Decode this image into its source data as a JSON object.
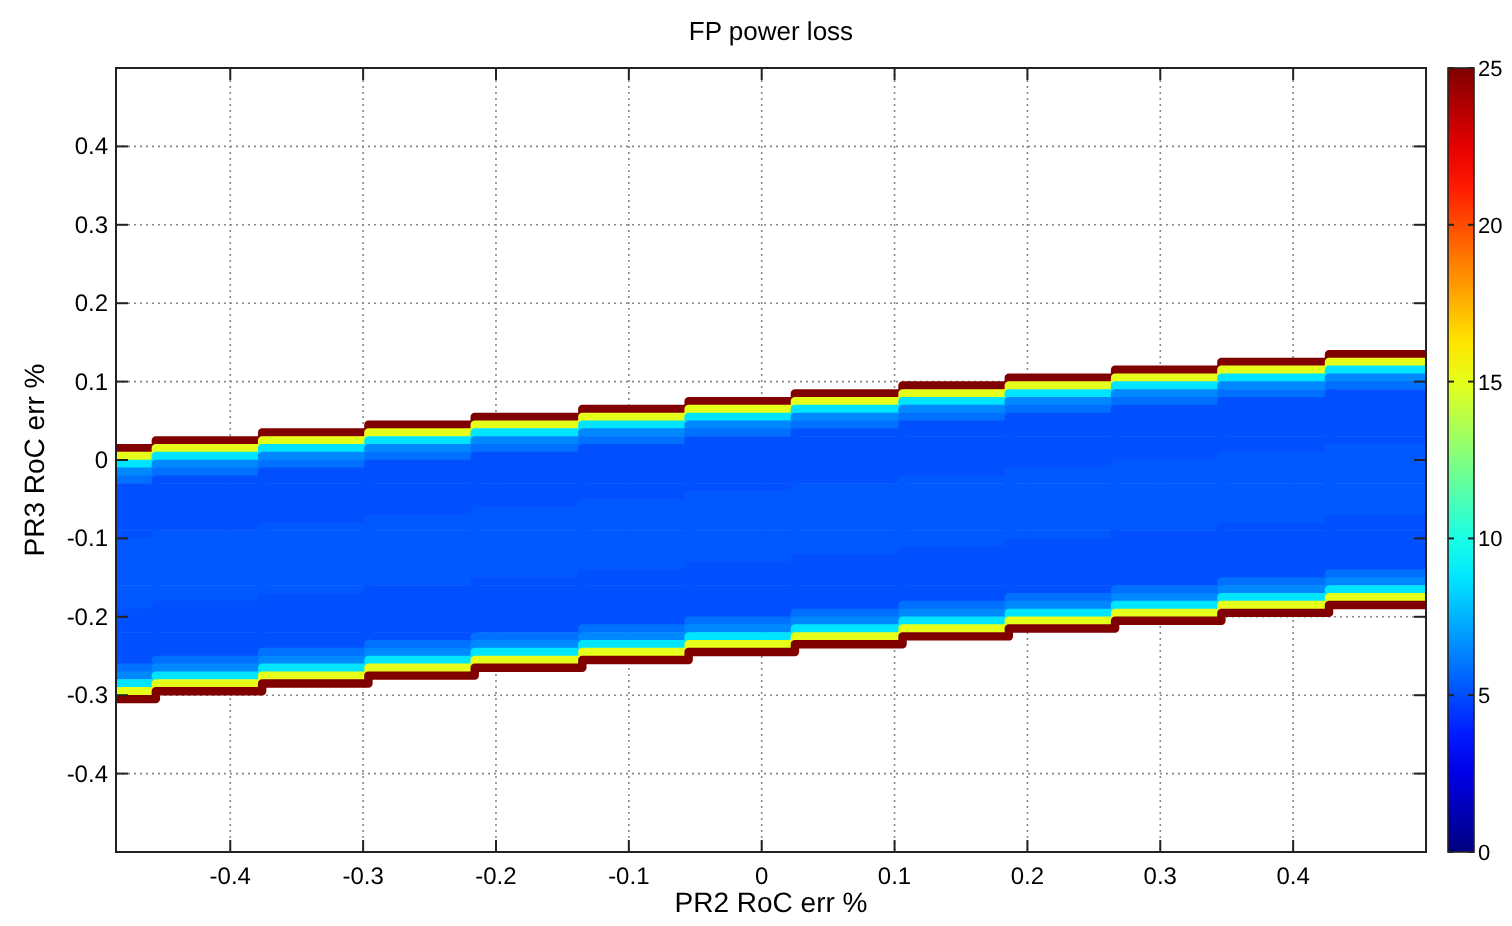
{
  "chart_data": {
    "type": "step",
    "title": "FP power loss",
    "xlabel": "PR2 RoC err %",
    "ylabel": "PR3 RoC err %",
    "xlim": [
      -0.486,
      0.5
    ],
    "xticks": [
      -0.4,
      -0.3,
      -0.2,
      -0.1,
      0,
      0.1,
      0.2,
      0.3,
      0.4
    ],
    "ylim": [
      -0.5,
      0.5
    ],
    "yticks": [
      -0.4,
      -0.3,
      -0.2,
      -0.1,
      0,
      0.1,
      0.2,
      0.3,
      0.4
    ],
    "clim": [
      0,
      25
    ],
    "cticks": [
      0,
      5,
      10,
      15,
      20,
      25
    ],
    "grid": true,
    "x": [
      -0.486,
      -0.456,
      -0.376,
      -0.296,
      -0.216,
      -0.135,
      -0.055,
      0.025,
      0.106,
      0.186,
      0.266,
      0.346,
      0.427,
      0.5
    ],
    "series": [
      {
        "color": "#800000",
        "values": [
          0.015,
          0.025,
          0.035,
          0.045,
          0.055,
          0.065,
          0.075,
          0.085,
          0.095,
          0.105,
          0.115,
          0.125,
          0.135,
          0.135
        ]
      },
      {
        "color": "#e5ff1a",
        "values": [
          0.005,
          0.015,
          0.025,
          0.035,
          0.045,
          0.055,
          0.065,
          0.075,
          0.085,
          0.095,
          0.105,
          0.115,
          0.125,
          0.125
        ]
      },
      {
        "color": "#00e5ff",
        "values": [
          -0.005,
          0.005,
          0.015,
          0.025,
          0.035,
          0.045,
          0.055,
          0.065,
          0.075,
          0.085,
          0.095,
          0.105,
          0.115,
          0.115
        ]
      },
      {
        "color": "#0088ff",
        "values": [
          -0.015,
          -0.005,
          0.005,
          0.015,
          0.025,
          0.035,
          0.045,
          0.055,
          0.065,
          0.075,
          0.085,
          0.095,
          0.105,
          0.105
        ]
      },
      {
        "color": "#0070ff",
        "values": [
          -0.025,
          -0.015,
          -0.005,
          0.005,
          0.015,
          0.025,
          0.035,
          0.045,
          0.055,
          0.065,
          0.075,
          0.085,
          0.095,
          0.095
        ]
      },
      {
        "color": "#0050ff",
        "values": [
          -0.035,
          -0.025,
          -0.015,
          -0.005,
          0.005,
          0.015,
          0.025,
          0.035,
          0.045,
          0.055,
          0.065,
          0.075,
          0.085,
          0.085
        ]
      },
      {
        "color": "#0050ff",
        "values": [
          -0.045,
          -0.035,
          -0.025,
          -0.015,
          -0.005,
          0.005,
          0.015,
          0.025,
          0.035,
          0.045,
          0.055,
          0.065,
          0.075,
          0.075
        ]
      },
      {
        "color": "#0050ff",
        "values": [
          -0.055,
          -0.045,
          -0.035,
          -0.025,
          -0.015,
          -0.005,
          0.005,
          0.015,
          0.025,
          0.035,
          0.045,
          0.055,
          0.065,
          0.065
        ]
      },
      {
        "color": "#0050ff",
        "values": [
          -0.065,
          -0.055,
          -0.045,
          -0.035,
          -0.025,
          -0.015,
          -0.005,
          0.005,
          0.015,
          0.025,
          0.035,
          0.045,
          0.055,
          0.055
        ]
      },
      {
        "color": "#0050ff",
        "values": [
          -0.075,
          -0.065,
          -0.055,
          -0.045,
          -0.035,
          -0.025,
          -0.015,
          -0.005,
          0.005,
          0.015,
          0.025,
          0.035,
          0.045,
          0.045
        ]
      },
      {
        "color": "#0050ff",
        "values": [
          -0.085,
          -0.075,
          -0.065,
          -0.055,
          -0.045,
          -0.035,
          -0.025,
          -0.015,
          -0.005,
          0.005,
          0.015,
          0.025,
          0.035,
          0.035
        ]
      },
      {
        "color": "#0050ff",
        "values": [
          -0.095,
          -0.085,
          -0.075,
          -0.065,
          -0.055,
          -0.045,
          -0.035,
          -0.025,
          -0.015,
          -0.005,
          0.005,
          0.015,
          0.025,
          0.025
        ]
      },
      {
        "color": "#0058ff",
        "values": [
          -0.105,
          -0.095,
          -0.085,
          -0.075,
          -0.065,
          -0.055,
          -0.045,
          -0.035,
          -0.025,
          -0.015,
          -0.005,
          0.005,
          0.015,
          0.015
        ]
      },
      {
        "color": "#0058ff",
        "values": [
          -0.115,
          -0.105,
          -0.095,
          -0.085,
          -0.075,
          -0.065,
          -0.055,
          -0.045,
          -0.035,
          -0.025,
          -0.015,
          -0.005,
          0.005,
          0.005
        ]
      },
      {
        "color": "#0058ff",
        "values": [
          -0.125,
          -0.115,
          -0.105,
          -0.095,
          -0.085,
          -0.075,
          -0.065,
          -0.055,
          -0.045,
          -0.035,
          -0.025,
          -0.015,
          -0.005,
          -0.005
        ]
      },
      {
        "color": "#0058ff",
        "values": [
          -0.135,
          -0.125,
          -0.115,
          -0.105,
          -0.095,
          -0.085,
          -0.075,
          -0.065,
          -0.055,
          -0.045,
          -0.035,
          -0.025,
          -0.015,
          -0.015
        ]
      },
      {
        "color": "#0058ff",
        "values": [
          -0.145,
          -0.135,
          -0.125,
          -0.115,
          -0.105,
          -0.095,
          -0.085,
          -0.075,
          -0.065,
          -0.055,
          -0.045,
          -0.035,
          -0.025,
          -0.025
        ]
      },
      {
        "color": "#0058ff",
        "values": [
          -0.155,
          -0.145,
          -0.135,
          -0.125,
          -0.115,
          -0.105,
          -0.095,
          -0.085,
          -0.075,
          -0.065,
          -0.055,
          -0.045,
          -0.035,
          -0.035
        ]
      },
      {
        "color": "#0058ff",
        "values": [
          -0.165,
          -0.155,
          -0.145,
          -0.135,
          -0.125,
          -0.115,
          -0.105,
          -0.095,
          -0.085,
          -0.075,
          -0.065,
          -0.055,
          -0.045,
          -0.045
        ]
      },
      {
        "color": "#0058ff",
        "values": [
          -0.175,
          -0.165,
          -0.155,
          -0.145,
          -0.135,
          -0.125,
          -0.115,
          -0.105,
          -0.095,
          -0.085,
          -0.075,
          -0.065,
          -0.055,
          -0.055
        ]
      },
      {
        "color": "#0058ff",
        "values": [
          -0.185,
          -0.175,
          -0.165,
          -0.155,
          -0.145,
          -0.135,
          -0.125,
          -0.115,
          -0.105,
          -0.095,
          -0.085,
          -0.075,
          -0.065,
          -0.065
        ]
      },
      {
        "color": "#0050ff",
        "values": [
          -0.195,
          -0.185,
          -0.175,
          -0.165,
          -0.155,
          -0.145,
          -0.135,
          -0.125,
          -0.115,
          -0.105,
          -0.095,
          -0.085,
          -0.075,
          -0.075
        ]
      },
      {
        "color": "#0050ff",
        "values": [
          -0.205,
          -0.195,
          -0.185,
          -0.175,
          -0.165,
          -0.155,
          -0.145,
          -0.135,
          -0.125,
          -0.115,
          -0.105,
          -0.095,
          -0.085,
          -0.085
        ]
      },
      {
        "color": "#0050ff",
        "values": [
          -0.215,
          -0.205,
          -0.195,
          -0.185,
          -0.175,
          -0.165,
          -0.155,
          -0.145,
          -0.135,
          -0.125,
          -0.115,
          -0.105,
          -0.095,
          -0.095
        ]
      },
      {
        "color": "#0050ff",
        "values": [
          -0.225,
          -0.215,
          -0.205,
          -0.195,
          -0.185,
          -0.175,
          -0.165,
          -0.155,
          -0.145,
          -0.135,
          -0.125,
          -0.115,
          -0.105,
          -0.105
        ]
      },
      {
        "color": "#0050ff",
        "values": [
          -0.235,
          -0.225,
          -0.215,
          -0.205,
          -0.195,
          -0.185,
          -0.175,
          -0.165,
          -0.155,
          -0.145,
          -0.135,
          -0.125,
          -0.115,
          -0.115
        ]
      },
      {
        "color": "#0050ff",
        "values": [
          -0.245,
          -0.235,
          -0.225,
          -0.215,
          -0.205,
          -0.195,
          -0.185,
          -0.175,
          -0.165,
          -0.155,
          -0.145,
          -0.135,
          -0.125,
          -0.125
        ]
      },
      {
        "color": "#0050ff",
        "values": [
          -0.255,
          -0.245,
          -0.235,
          -0.225,
          -0.215,
          -0.205,
          -0.195,
          -0.185,
          -0.175,
          -0.165,
          -0.155,
          -0.145,
          -0.135,
          -0.135
        ]
      },
      {
        "color": "#0070ff",
        "values": [
          -0.265,
          -0.255,
          -0.245,
          -0.235,
          -0.225,
          -0.215,
          -0.205,
          -0.195,
          -0.185,
          -0.175,
          -0.165,
          -0.155,
          -0.145,
          -0.145
        ]
      },
      {
        "color": "#0088ff",
        "values": [
          -0.275,
          -0.265,
          -0.255,
          -0.245,
          -0.235,
          -0.225,
          -0.215,
          -0.205,
          -0.195,
          -0.185,
          -0.175,
          -0.165,
          -0.155,
          -0.155
        ]
      },
      {
        "color": "#00e5ff",
        "values": [
          -0.285,
          -0.275,
          -0.265,
          -0.255,
          -0.245,
          -0.235,
          -0.225,
          -0.215,
          -0.205,
          -0.195,
          -0.185,
          -0.175,
          -0.165,
          -0.165
        ]
      },
      {
        "color": "#e5ff1a",
        "values": [
          -0.295,
          -0.285,
          -0.275,
          -0.265,
          -0.255,
          -0.245,
          -0.235,
          -0.225,
          -0.215,
          -0.205,
          -0.195,
          -0.185,
          -0.175,
          -0.175
        ]
      },
      {
        "color": "#800000",
        "values": [
          -0.305,
          -0.295,
          -0.285,
          -0.275,
          -0.265,
          -0.255,
          -0.245,
          -0.235,
          -0.225,
          -0.215,
          -0.205,
          -0.195,
          -0.185,
          -0.185
        ]
      }
    ]
  }
}
